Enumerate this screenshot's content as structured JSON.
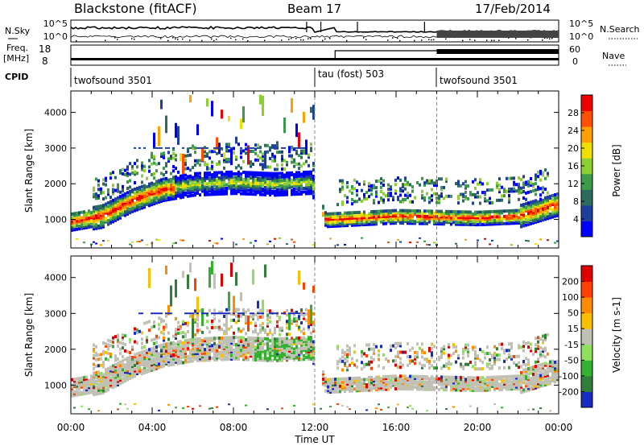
{
  "header": {
    "station": "Blackstone (fitACF)",
    "beam": "Beam 17",
    "date": "17/Feb/2014"
  },
  "status_panels": {
    "nsky_label": "N.Sky",
    "nsky_ticks": [
      "10^5",
      "10^0"
    ],
    "nsearch_label": "N.Search",
    "nsearch_ticks": [
      "10^5",
      "10^0"
    ],
    "freq_label": "Freq.",
    "freq_unit": "[MHz]",
    "freq_ticks": [
      "18",
      "8"
    ],
    "nave_label": "Nave",
    "nave_ticks": [
      "60",
      "0"
    ],
    "cpid_label": "CPID",
    "cpid_segments": [
      {
        "name": "twofsound 3501",
        "start_hour": 0,
        "end_hour": 12
      },
      {
        "name": "tau (fost) 503",
        "start_hour": 12,
        "end_hour": 18
      },
      {
        "name": "twofsound 3501",
        "start_hour": 18,
        "end_hour": 24
      }
    ]
  },
  "power_panel": {
    "ylabel": "Slant Range [km]",
    "yticks": [
      "4000",
      "3000",
      "2000",
      "1000"
    ],
    "colorbar_label": "Power [dB]",
    "colorbar_ticks": [
      "28",
      "24",
      "20",
      "16",
      "12",
      "8",
      "4"
    ],
    "colors": [
      "#0000ff",
      "#1f3f9f",
      "#2e6b5f",
      "#3b9b4a",
      "#8ccf30",
      "#f0e000",
      "#ffa000",
      "#ff5000",
      "#ee0000"
    ]
  },
  "velocity_panel": {
    "ylabel": "Slant Range [km]",
    "yticks": [
      "4000",
      "3000",
      "2000",
      "1000"
    ],
    "colorbar_label": "Velocity [m s-1]",
    "colorbar_ticks": [
      "200",
      "100",
      "50",
      "15",
      "-15",
      "-50",
      "-100",
      "-200"
    ],
    "colors": [
      "#1a2bbf",
      "#2f7f3a",
      "#35b030",
      "#90e060",
      "#c0c0b4",
      "#f8c000",
      "#ff8c00",
      "#ff4000",
      "#e00000"
    ]
  },
  "xaxis": {
    "label": "Time UT",
    "ticks": [
      "00:00",
      "04:00",
      "08:00",
      "12:00",
      "16:00",
      "20:00",
      "00:00"
    ]
  },
  "chart_data": {
    "type": "heatmap",
    "title": "Blackstone (fitACF)",
    "x_unit": "hours UT",
    "xlim": [
      0,
      24
    ],
    "ylim": [
      200,
      4600
    ],
    "xlabel": "Time UT",
    "ylabel": "Slant Range [km]",
    "main_echo_band_center_km": [
      {
        "hour": 0,
        "range": 950
      },
      {
        "hour": 1.5,
        "range": 1100
      },
      {
        "hour": 3,
        "range": 1550
      },
      {
        "hour": 4.5,
        "range": 1850
      },
      {
        "hour": 6,
        "range": 2000
      },
      {
        "hour": 8,
        "range": 2050
      },
      {
        "hour": 10,
        "range": 2000
      },
      {
        "hour": 11.8,
        "range": 2050
      },
      {
        "hour": 12.5,
        "range": 1000
      },
      {
        "hour": 16,
        "range": 1100
      },
      {
        "hour": 20,
        "range": 1050
      },
      {
        "hour": 22,
        "range": 1100
      },
      {
        "hour": 24,
        "range": 1450
      }
    ],
    "power_scale_db": [
      0,
      30
    ],
    "velocity_scale_ms": [
      -200,
      200
    ]
  }
}
